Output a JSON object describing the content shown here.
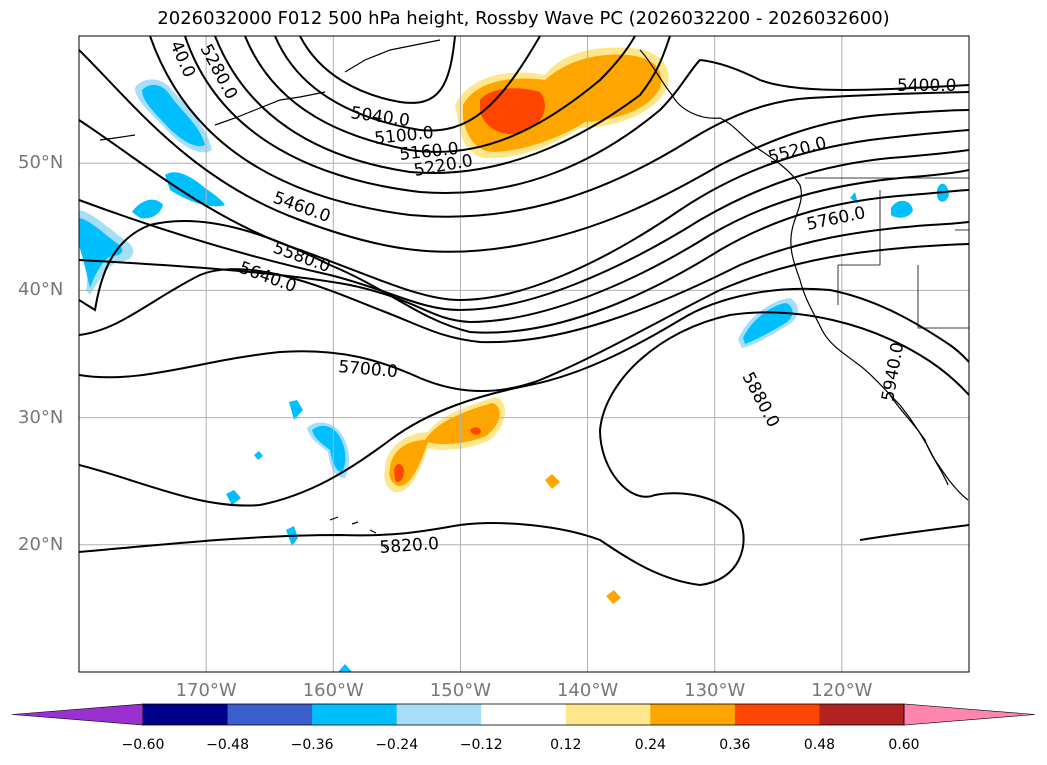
{
  "title": "2026032000 F012 500 hPa height, Rossby Wave PC (2026032200 - 2026032600)",
  "map": {
    "lon_range": [
      -180,
      -110
    ],
    "lat_range": [
      10,
      60
    ],
    "lat_ticks": [
      {
        "value": 50,
        "label": "50°N"
      },
      {
        "value": 40,
        "label": "40°N"
      },
      {
        "value": 30,
        "label": "30°N"
      },
      {
        "value": 20,
        "label": "20°N"
      }
    ],
    "lon_ticks": [
      {
        "value": -170,
        "label": "170°W"
      },
      {
        "value": -160,
        "label": "160°W"
      },
      {
        "value": -150,
        "label": "150°W"
      },
      {
        "value": -140,
        "label": "140°W"
      },
      {
        "value": -130,
        "label": "130°W"
      },
      {
        "value": -120,
        "label": "120°W"
      }
    ],
    "grid": true
  },
  "contours": {
    "variable": "500 hPa height",
    "labels": [
      "5040.0",
      "5100.0",
      "5160.0",
      "5220.0",
      "5280.0",
      "5400.0",
      "5460.0",
      "5520.0",
      "5580.0",
      "5640.0",
      "5700.0",
      "5760.0",
      "5820.0",
      "5880.0",
      "5940.0",
      "40.0"
    ]
  },
  "colorbar": {
    "extend": "both",
    "colors": [
      "#9b30d0",
      "#00008b",
      "#3a5ecb",
      "#00bfff",
      "#a6def8",
      "#ffffff",
      "#fde78a",
      "#ffa500",
      "#ff4500",
      "#b22222",
      "#ff85b0"
    ],
    "ticks": [
      "−0.60",
      "−0.48",
      "−0.36",
      "−0.24",
      "−0.12",
      "0.12",
      "0.24",
      "0.36",
      "0.48",
      "0.60"
    ]
  }
}
